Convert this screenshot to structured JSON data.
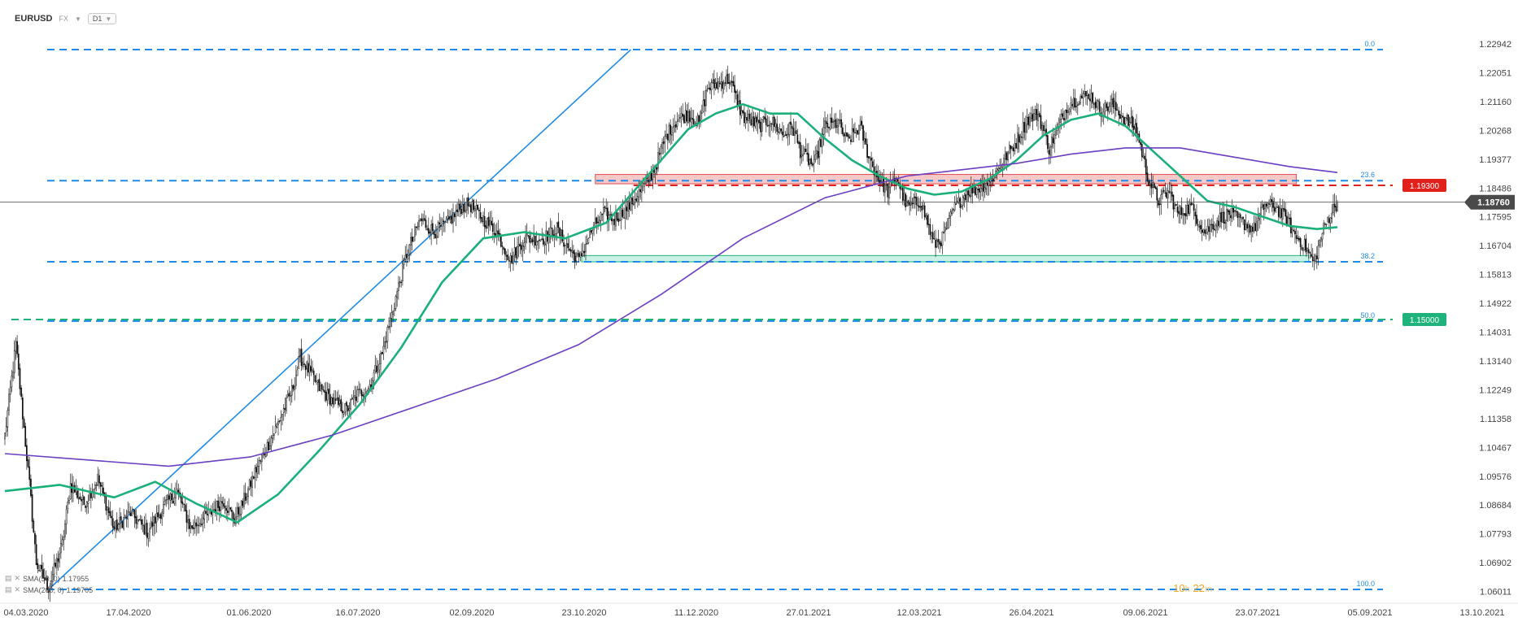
{
  "header": {
    "symbol": "EURUSD",
    "market": "FX",
    "timeframe": "D1"
  },
  "indicators": [
    {
      "label": "SMA(50, 0)",
      "value": "1.17955",
      "color": "#1bb07a"
    },
    {
      "label": "SMA(200, 0)",
      "value": "1.19705",
      "color": "#6a3fc1"
    }
  ],
  "timer": {
    "hours": "10",
    "h_unit": "h",
    "minutes": "22",
    "m_unit": "m"
  },
  "chart_data": {
    "type": "candlestick",
    "symbol": "EURUSD",
    "ylim": [
      1.06011,
      1.23833
    ],
    "x_ticks": [
      "04.03.2020",
      "17.04.2020",
      "01.06.2020",
      "16.07.2020",
      "02.09.2020",
      "23.10.2020",
      "11.12.2020",
      "27.01.2021",
      "12.03.2021",
      "26.04.2021",
      "09.06.2021",
      "23.07.2021",
      "05.09.2021",
      "13.10.2021"
    ],
    "y_ticks": [
      "1.22942",
      "1.22051",
      "1.21160",
      "1.20268",
      "1.19377",
      "1.18486",
      "1.17595",
      "1.16704",
      "1.15813",
      "1.14922",
      "1.14031",
      "1.13140",
      "1.12249",
      "1.11358",
      "1.10467",
      "1.09576",
      "1.08684",
      "1.07793",
      "1.06902",
      "1.06011"
    ],
    "current_price": {
      "value": 1.1876,
      "label": "1.18760",
      "color": "#4a4a4a"
    },
    "price_levels": [
      {
        "value": 1.193,
        "label": "1.19300",
        "color": "#e0201b",
        "style": "dashed"
      },
      {
        "value": 1.15,
        "label": "1.15000",
        "color": "#1db37a",
        "style": "dashed"
      }
    ],
    "fibonacci": [
      {
        "label": "0.0",
        "value": 1.2365
      },
      {
        "label": "23.6",
        "value": 1.1945
      },
      {
        "label": "38.2",
        "value": 1.1685
      },
      {
        "label": "50.0",
        "value": 1.1495
      },
      {
        "label": "100.0",
        "value": 1.0635
      }
    ],
    "zones": [
      {
        "name": "resistance",
        "from": 1.1935,
        "to": 1.1965,
        "color": "#f4b6b6",
        "border": "#e05050"
      },
      {
        "name": "support",
        "from": 1.1685,
        "to": 1.1705,
        "color": "#b9eedd",
        "border": "#1db37a"
      }
    ],
    "candles_anchor": [
      [
        0,
        1.113
      ],
      [
        8,
        1.142
      ],
      [
        18,
        1.097
      ],
      [
        23,
        1.072
      ],
      [
        32,
        1.064
      ],
      [
        42,
        1.078
      ],
      [
        48,
        1.097
      ],
      [
        58,
        1.091
      ],
      [
        68,
        1.099
      ],
      [
        80,
        1.083
      ],
      [
        92,
        1.088
      ],
      [
        104,
        1.082
      ],
      [
        118,
        1.091
      ],
      [
        126,
        1.095
      ],
      [
        136,
        1.083
      ],
      [
        150,
        1.088
      ],
      [
        160,
        1.092
      ],
      [
        168,
        1.086
      ],
      [
        174,
        1.091
      ],
      [
        184,
        1.102
      ],
      [
        196,
        1.113
      ],
      [
        210,
        1.127
      ],
      [
        216,
        1.138
      ],
      [
        222,
        1.134
      ],
      [
        230,
        1.128
      ],
      [
        242,
        1.123
      ],
      [
        250,
        1.121
      ],
      [
        258,
        1.126
      ],
      [
        266,
        1.128
      ],
      [
        276,
        1.139
      ],
      [
        286,
        1.157
      ],
      [
        294,
        1.171
      ],
      [
        304,
        1.182
      ],
      [
        314,
        1.178
      ],
      [
        324,
        1.181
      ],
      [
        334,
        1.186
      ],
      [
        340,
        1.187
      ],
      [
        348,
        1.183
      ],
      [
        360,
        1.178
      ],
      [
        370,
        1.169
      ],
      [
        380,
        1.176
      ],
      [
        394,
        1.176
      ],
      [
        404,
        1.179
      ],
      [
        412,
        1.173
      ],
      [
        420,
        1.169
      ],
      [
        430,
        1.179
      ],
      [
        438,
        1.184
      ],
      [
        446,
        1.182
      ],
      [
        458,
        1.187
      ],
      [
        470,
        1.194
      ],
      [
        476,
        1.199
      ],
      [
        484,
        1.209
      ],
      [
        492,
        1.214
      ],
      [
        500,
        1.216
      ],
      [
        508,
        1.213
      ],
      [
        514,
        1.224
      ],
      [
        524,
        1.226
      ],
      [
        530,
        1.227
      ],
      [
        540,
        1.215
      ],
      [
        552,
        1.212
      ],
      [
        560,
        1.214
      ],
      [
        570,
        1.209
      ],
      [
        576,
        1.212
      ],
      [
        582,
        1.204
      ],
      [
        592,
        1.199
      ],
      [
        600,
        1.212
      ],
      [
        610,
        1.213
      ],
      [
        616,
        1.207
      ],
      [
        626,
        1.212
      ],
      [
        630,
        1.205
      ],
      [
        638,
        1.196
      ],
      [
        646,
        1.191
      ],
      [
        652,
        1.196
      ],
      [
        660,
        1.186
      ],
      [
        670,
        1.188
      ],
      [
        680,
        1.174
      ],
      [
        686,
        1.176
      ],
      [
        694,
        1.185
      ],
      [
        704,
        1.191
      ],
      [
        712,
        1.192
      ],
      [
        722,
        1.195
      ],
      [
        732,
        1.202
      ],
      [
        740,
        1.207
      ],
      [
        748,
        1.214
      ],
      [
        756,
        1.216
      ],
      [
        764,
        1.205
      ],
      [
        770,
        1.211
      ],
      [
        778,
        1.219
      ],
      [
        786,
        1.221
      ],
      [
        794,
        1.222
      ],
      [
        802,
        1.217
      ],
      [
        810,
        1.219
      ],
      [
        820,
        1.214
      ],
      [
        828,
        1.211
      ],
      [
        836,
        1.196
      ],
      [
        844,
        1.188
      ],
      [
        852,
        1.191
      ],
      [
        858,
        1.184
      ],
      [
        868,
        1.186
      ],
      [
        878,
        1.178
      ],
      [
        888,
        1.182
      ],
      [
        896,
        1.184
      ],
      [
        906,
        1.181
      ],
      [
        914,
        1.179
      ],
      [
        922,
        1.187
      ],
      [
        930,
        1.186
      ],
      [
        938,
        1.182
      ],
      [
        944,
        1.177
      ],
      [
        952,
        1.173
      ],
      [
        958,
        1.168
      ],
      [
        964,
        1.178
      ],
      [
        970,
        1.184
      ],
      [
        975,
        1.1876
      ]
    ],
    "series": [
      {
        "name": "SMA(50, 0)",
        "color": "#1bb07a",
        "x": [
          0,
          40,
          80,
          110,
          140,
          170,
          200,
          230,
          260,
          290,
          320,
          350,
          380,
          410,
          440,
          470,
          500,
          520,
          540,
          560,
          580,
          600,
          620,
          640,
          660,
          680,
          700,
          720,
          740,
          760,
          780,
          800,
          820,
          840,
          860,
          880,
          900,
          920,
          940,
          960,
          975
        ],
        "values": [
          1.095,
          1.097,
          1.093,
          1.098,
          1.091,
          1.085,
          1.094,
          1.108,
          1.123,
          1.141,
          1.162,
          1.176,
          1.178,
          1.176,
          1.181,
          1.196,
          1.211,
          1.216,
          1.219,
          1.216,
          1.216,
          1.208,
          1.201,
          1.196,
          1.192,
          1.19,
          1.191,
          1.195,
          1.201,
          1.209,
          1.214,
          1.216,
          1.212,
          1.204,
          1.196,
          1.188,
          1.186,
          1.183,
          1.18,
          1.179,
          1.1796
        ]
      },
      {
        "name": "SMA(200, 0)",
        "color": "#6a3fc1",
        "x": [
          0,
          60,
          120,
          180,
          240,
          300,
          360,
          420,
          480,
          540,
          600,
          660,
          700,
          740,
          780,
          820,
          860,
          900,
          940,
          975
        ],
        "values": [
          1.107,
          1.105,
          1.103,
          1.106,
          1.113,
          1.122,
          1.131,
          1.142,
          1.158,
          1.176,
          1.189,
          1.196,
          1.198,
          1.2,
          1.203,
          1.205,
          1.205,
          1.202,
          1.199,
          1.1971
        ]
      }
    ],
    "trendline": {
      "from": [
        1.0635,
        32
      ],
      "to": [
        1.2365,
        458
      ],
      "color": "#1f8be6"
    }
  }
}
